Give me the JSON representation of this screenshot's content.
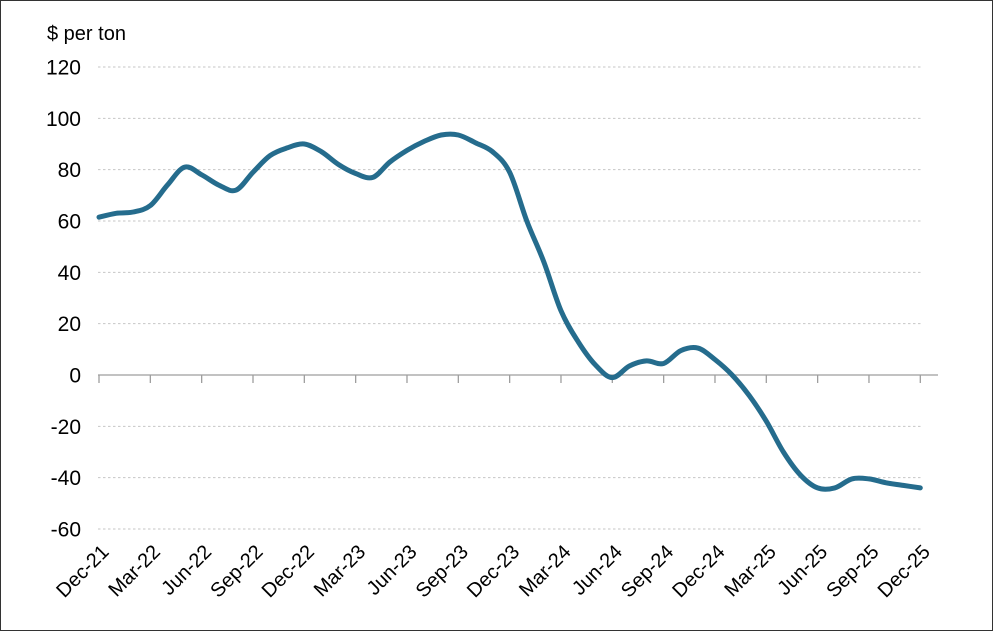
{
  "frame": {
    "background_color": "#ffffff",
    "border_color": "#333333"
  },
  "chart_data": {
    "type": "line",
    "title": "$ per ton",
    "ylabel": "$ per ton",
    "xlabel": "",
    "ylim": [
      -60,
      120
    ],
    "yticks": [
      120,
      100,
      80,
      60,
      40,
      20,
      0,
      -20,
      -40,
      -60
    ],
    "grid": "horizontal-dashed",
    "legend": "none",
    "line_color": "#256C8D",
    "grid_color": "#c6c6c6",
    "axis_color": "#9e9e9e",
    "x_label_every": 3,
    "x_tick_labels": [
      "Dec-21",
      "Mar-22",
      "Jun-22",
      "Sep-22",
      "Dec-22",
      "Mar-23",
      "Jun-23",
      "Sep-23",
      "Dec-23",
      "Mar-24",
      "Jun-24",
      "Sep-24",
      "Dec-24",
      "Mar-25",
      "Jun-25",
      "Sep-25",
      "Dec-25"
    ],
    "x": [
      "Dec-21",
      "Jan-22",
      "Feb-22",
      "Mar-22",
      "Apr-22",
      "May-22",
      "Jun-22",
      "Jul-22",
      "Aug-22",
      "Sep-22",
      "Oct-22",
      "Nov-22",
      "Dec-22",
      "Jan-23",
      "Feb-23",
      "Mar-23",
      "Apr-23",
      "May-23",
      "Jun-23",
      "Jul-23",
      "Aug-23",
      "Sep-23",
      "Oct-23",
      "Nov-23",
      "Dec-23",
      "Jan-24",
      "Feb-24",
      "Mar-24",
      "Apr-24",
      "May-24",
      "Jun-24",
      "Jul-24",
      "Aug-24",
      "Sep-24",
      "Oct-24",
      "Nov-24",
      "Dec-24",
      "Jan-25",
      "Feb-25",
      "Mar-25",
      "Apr-25",
      "May-25",
      "Jun-25",
      "Jul-25",
      "Aug-25",
      "Sep-25",
      "Oct-25",
      "Nov-25",
      "Dec-25"
    ],
    "values": [
      61.5,
      63,
      63.5,
      66,
      74,
      81,
      78,
      74,
      72,
      79,
      85.5,
      88.5,
      90,
      87,
      82,
      78.5,
      77,
      83,
      87.5,
      91,
      93.5,
      93.5,
      90.5,
      87,
      79,
      60,
      44,
      25,
      13,
      4,
      -1,
      3.5,
      5.5,
      4.5,
      9.5,
      10.5,
      6,
      0,
      -8,
      -18,
      -30,
      -39,
      -44,
      -44,
      -40.5,
      -40.5,
      -42,
      -43,
      -44
    ]
  }
}
